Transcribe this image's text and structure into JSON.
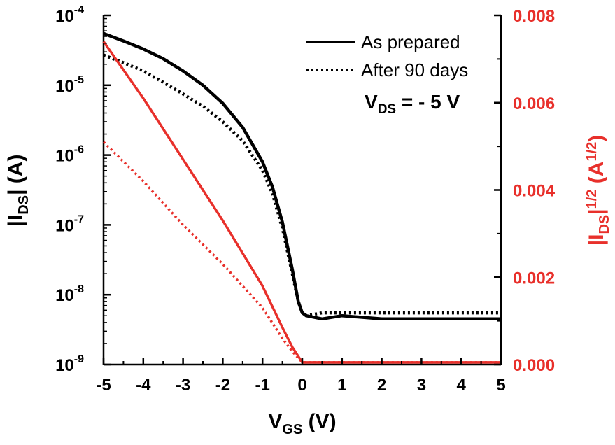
{
  "chart_data": {
    "type": "line",
    "x_axis": {
      "label_main": "V",
      "label_sub": "GS",
      "label_unit": " (V)",
      "range": [
        -5,
        5
      ],
      "ticks": [
        -5,
        -4,
        -3,
        -2,
        -1,
        0,
        1,
        2,
        3,
        4,
        5
      ]
    },
    "y_left_axis": {
      "label_pre": "|I",
      "label_sub": "DS",
      "label_post": "| (A)",
      "scale": "log",
      "range": [
        1e-09,
        0.0001
      ],
      "ticks": [
        {
          "base": "10",
          "exp": "-9",
          "value": 1e-09
        },
        {
          "base": "10",
          "exp": "-8",
          "value": 1e-08
        },
        {
          "base": "10",
          "exp": "-7",
          "value": 1e-07
        },
        {
          "base": "10",
          "exp": "-6",
          "value": 1e-06
        },
        {
          "base": "10",
          "exp": "-5",
          "value": 1e-05
        },
        {
          "base": "10",
          "exp": "-4",
          "value": 0.0001
        }
      ],
      "color": "#000000"
    },
    "y_right_axis": {
      "label_pre": "|I",
      "label_sub": "DS",
      "label_mid": "|",
      "label_sup": "1/2",
      "label_unit_pre": " (A",
      "label_unit_sup": "1/2",
      "label_unit_post": ")",
      "scale": "linear",
      "range": [
        0,
        0.008
      ],
      "ticks": [
        "0.000",
        "0.002",
        "0.004",
        "0.006",
        "0.008"
      ],
      "color": "#e8302b"
    },
    "legend": [
      {
        "label": "As prepared",
        "style": "solid"
      },
      {
        "label": "After 90 days",
        "style": "dotted"
      }
    ],
    "annotation": {
      "pre": "V",
      "sub": "DS",
      "post": " = - 5 V"
    },
    "series": [
      {
        "name": "As prepared",
        "axis": "left",
        "style": "solid",
        "color": "#000000",
        "x": [
          -5,
          -4.5,
          -4,
          -3.5,
          -3,
          -2.5,
          -2,
          -1.5,
          -1,
          -0.75,
          -0.5,
          -0.25,
          -0.1,
          0,
          0.1,
          0.5,
          1,
          2,
          3,
          4,
          5
        ],
        "y": [
          5.5e-05,
          4.3e-05,
          3.3e-05,
          2.4e-05,
          1.6e-05,
          1e-05,
          5.5e-06,
          2.5e-06,
          8e-07,
          3.5e-07,
          1.1e-07,
          2.3e-08,
          8e-09,
          5.5e-09,
          5e-09,
          4.5e-09,
          5e-09,
          4.5e-09,
          4.5e-09,
          4.5e-09,
          4.5e-09
        ]
      },
      {
        "name": "After 90 days",
        "axis": "left",
        "style": "dotted",
        "color": "#000000",
        "x": [
          -5,
          -4.5,
          -4,
          -3.5,
          -3,
          -2.5,
          -2,
          -1.5,
          -1,
          -0.75,
          -0.5,
          -0.25,
          -0.1,
          0,
          0.1,
          0.5,
          1,
          2,
          3,
          4,
          5
        ],
        "y": [
          2.7e-05,
          2.1e-05,
          1.6e-05,
          1.1e-05,
          7.5e-06,
          5e-06,
          3e-06,
          1.6e-06,
          6e-07,
          2.8e-07,
          9e-08,
          2e-08,
          8e-09,
          5.5e-09,
          5e-09,
          5.5e-09,
          5.5e-09,
          5.5e-09,
          5.5e-09,
          5.5e-09,
          5.5e-09
        ]
      },
      {
        "name": "As prepared",
        "axis": "right",
        "style": "solid",
        "color": "#e8302b",
        "x": [
          -5,
          -4,
          -3,
          -2,
          -1,
          -0.5,
          -0.25,
          0,
          5
        ],
        "y": [
          0.0074,
          0.0061,
          0.0047,
          0.0033,
          0.0018,
          0.00085,
          0.0004,
          5e-05,
          5e-05
        ]
      },
      {
        "name": "After 90 days",
        "axis": "right",
        "style": "dotted",
        "color": "#e8302b",
        "x": [
          -5,
          -4,
          -3,
          -2,
          -1,
          -0.5,
          -0.25,
          0,
          5
        ],
        "y": [
          0.0051,
          0.0042,
          0.0032,
          0.0023,
          0.0013,
          0.0006,
          0.0003,
          5e-05,
          5e-05
        ]
      }
    ]
  }
}
